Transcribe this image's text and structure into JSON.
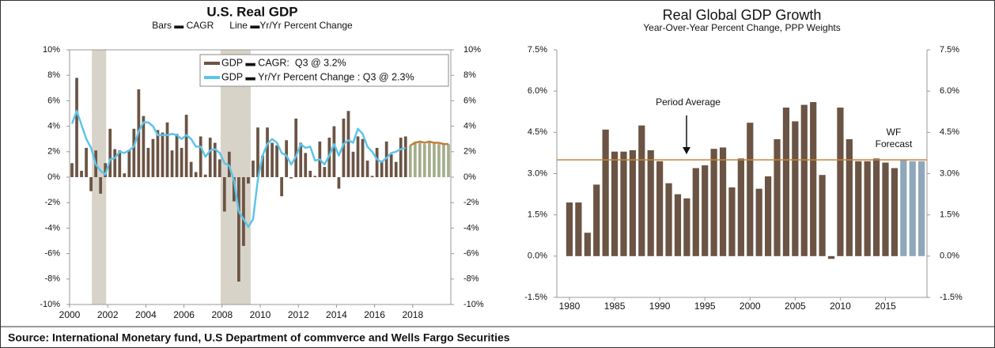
{
  "source": "Source: International Monetary fund, U.S Department of commverce and Wells Fargo Securities",
  "chart_data": [
    {
      "type": "bar",
      "title": "U.S. Real GDP",
      "subtitle": "Bars ▬ CAGR      Line ▬Yr/Yr Percent Change",
      "xlim": [
        2000,
        2020
      ],
      "xticks": [
        2000,
        2002,
        2004,
        2006,
        2008,
        2010,
        2012,
        2014,
        2016,
        2018
      ],
      "ylim": [
        -10,
        10
      ],
      "yticks": [
        {
          "value": -10,
          "label": "-10%"
        },
        {
          "value": -8,
          "label": "-8%"
        },
        {
          "value": -6,
          "label": "-6%"
        },
        {
          "value": -4,
          "label": "-4%"
        },
        {
          "value": -2,
          "label": "-2%"
        },
        {
          "value": 0,
          "label": "0%"
        },
        {
          "value": 2,
          "label": "2%"
        },
        {
          "value": 4,
          "label": "4%"
        },
        {
          "value": 6,
          "label": "6%"
        },
        {
          "value": 8,
          "label": "8%"
        },
        {
          "value": 10,
          "label": "10%"
        }
      ],
      "shaded": [
        [
          2001.17,
          2001.92
        ],
        [
          2007.92,
          2009.5
        ]
      ],
      "shade_color": "#d8d3c8",
      "series": [
        {
          "name": "GDP ▬ CAGR:  Q3 @ 3.2%",
          "type": "bar",
          "color": "#6b5444",
          "x": [
            2000.125,
            2000.375,
            2000.625,
            2000.875,
            2001.125,
            2001.375,
            2001.625,
            2001.875,
            2002.125,
            2002.375,
            2002.625,
            2002.875,
            2003.125,
            2003.375,
            2003.625,
            2003.875,
            2004.125,
            2004.375,
            2004.625,
            2004.875,
            2005.125,
            2005.375,
            2005.625,
            2005.875,
            2006.125,
            2006.375,
            2006.625,
            2006.875,
            2007.125,
            2007.375,
            2007.625,
            2007.875,
            2008.125,
            2008.375,
            2008.625,
            2008.875,
            2009.125,
            2009.375,
            2009.625,
            2009.875,
            2010.125,
            2010.375,
            2010.625,
            2010.875,
            2011.125,
            2011.375,
            2011.625,
            2011.875,
            2012.125,
            2012.375,
            2012.625,
            2012.875,
            2013.125,
            2013.375,
            2013.625,
            2013.875,
            2014.125,
            2014.375,
            2014.625,
            2014.875,
            2015.125,
            2015.375,
            2015.625,
            2015.875,
            2016.125,
            2016.375,
            2016.625,
            2016.875,
            2017.125,
            2017.375,
            2017.625
          ],
          "values": [
            1.1,
            7.8,
            0.5,
            2.3,
            -1.1,
            2.1,
            -1.3,
            1.1,
            3.8,
            2.2,
            2.1,
            0.3,
            2.1,
            3.8,
            6.9,
            4.8,
            2.3,
            3.0,
            3.7,
            3.5,
            4.3,
            2.1,
            3.4,
            2.3,
            4.9,
            1.2,
            0.4,
            3.2,
            0.2,
            3.1,
            2.7,
            1.4,
            -2.7,
            2.0,
            -1.9,
            -8.2,
            -5.4,
            -0.5,
            1.3,
            3.9,
            1.7,
            3.9,
            2.7,
            2.5,
            -1.5,
            2.9,
            -0.1,
            4.6,
            2.7,
            1.9,
            0.5,
            0.1,
            2.8,
            0.8,
            3.1,
            4.0,
            -0.9,
            4.6,
            5.2,
            2.0,
            3.2,
            3.0,
            1.3,
            0.1,
            2.3,
            1.3,
            2.8,
            1.8,
            1.2,
            3.1,
            3.2
          ]
        },
        {
          "type": "bar",
          "color": "#a5ae8c",
          "x": [
            2017.875,
            2018.125,
            2018.375,
            2018.625,
            2018.875,
            2019.125,
            2019.375,
            2019.625,
            2019.875
          ],
          "values": [
            2.5,
            2.8,
            2.7,
            2.6,
            2.8,
            2.7,
            2.6,
            2.6,
            2.6
          ]
        },
        {
          "name": "GDP ▬ Yr/Yr Percent Change : Q3 @ 2.3%",
          "type": "line",
          "color": "#5ec4ea",
          "x": [
            2000.125,
            2000.375,
            2000.625,
            2000.875,
            2001.125,
            2001.375,
            2001.625,
            2001.875,
            2002.125,
            2002.375,
            2002.625,
            2002.875,
            2003.125,
            2003.375,
            2003.625,
            2003.875,
            2004.125,
            2004.375,
            2004.625,
            2004.875,
            2005.125,
            2005.375,
            2005.625,
            2005.875,
            2006.125,
            2006.375,
            2006.625,
            2006.875,
            2007.125,
            2007.375,
            2007.625,
            2007.875,
            2008.125,
            2008.375,
            2008.625,
            2008.875,
            2009.125,
            2009.375,
            2009.625,
            2009.875,
            2010.125,
            2010.375,
            2010.625,
            2010.875,
            2011.125,
            2011.375,
            2011.625,
            2011.875,
            2012.125,
            2012.375,
            2012.625,
            2012.875,
            2013.125,
            2013.375,
            2013.625,
            2013.875,
            2014.125,
            2014.375,
            2014.625,
            2014.875,
            2015.125,
            2015.375,
            2015.625,
            2015.875,
            2016.125,
            2016.375,
            2016.625,
            2016.875,
            2017.125,
            2017.375,
            2017.625
          ],
          "values": [
            4.2,
            5.2,
            4.1,
            3.0,
            2.3,
            1.0,
            0.5,
            0.2,
            1.4,
            1.5,
            2.0,
            1.9,
            2.1,
            2.4,
            3.6,
            4.3,
            4.3,
            4.0,
            3.3,
            3.3,
            3.3,
            3.4,
            3.3,
            3.0,
            3.3,
            3.0,
            2.4,
            2.4,
            1.6,
            2.1,
            2.2,
            1.9,
            1.1,
            0.9,
            -0.3,
            -2.7,
            -3.3,
            -3.9,
            -3.3,
            -0.2,
            1.7,
            2.6,
            3.0,
            2.7,
            1.9,
            1.7,
            1.0,
            1.6,
            2.6,
            2.3,
            2.4,
            1.3,
            1.4,
            1.0,
            1.7,
            2.6,
            1.7,
            2.6,
            2.9,
            2.7,
            3.8,
            3.4,
            2.4,
            2.0,
            1.4,
            1.2,
            1.5,
            1.9,
            2.0,
            2.2,
            2.3
          ]
        },
        {
          "type": "line",
          "color": "#c17f3a",
          "x": [
            2017.875,
            2018.125,
            2018.375,
            2018.625,
            2018.875,
            2019.125,
            2019.375,
            2019.625,
            2019.875
          ],
          "values": [
            2.5,
            2.7,
            2.8,
            2.7,
            2.8,
            2.7,
            2.7,
            2.6,
            2.6
          ]
        }
      ]
    },
    {
      "type": "bar",
      "title": "Real Global GDP Growth",
      "subtitle": "Year-Over-Year Percent Change, PPP Weights",
      "xlim": [
        1978.6,
        2019.6
      ],
      "xticks": [
        1980,
        1985,
        1990,
        1995,
        2000,
        2005,
        2010,
        2015
      ],
      "ylim": [
        -1.5,
        7.5
      ],
      "yticks": [
        {
          "value": -1.5,
          "label": "-1.5%"
        },
        {
          "value": 0,
          "label": "0.0%"
        },
        {
          "value": 1.5,
          "label": "1.5%"
        },
        {
          "value": 3,
          "label": "3.0%"
        },
        {
          "value": 4.5,
          "label": "4.5%"
        },
        {
          "value": 6,
          "label": "6.0%"
        },
        {
          "value": 7.5,
          "label": "7.5%"
        }
      ],
      "hlines": [
        {
          "value": 3.5,
          "color": "#c8843a"
        }
      ],
      "annotations": [
        "Period Average",
        "WF",
        "Forecast"
      ],
      "series": [
        {
          "type": "bar",
          "color": "#6b5444",
          "x": [
            1980,
            1981,
            1982,
            1983,
            1984,
            1985,
            1986,
            1987,
            1988,
            1989,
            1990,
            1991,
            1992,
            1993,
            1994,
            1995,
            1996,
            1997,
            1998,
            1999,
            2000,
            2001,
            2002,
            2003,
            2004,
            2005,
            2006,
            2007,
            2008,
            2009,
            2010,
            2011,
            2012,
            2013,
            2014,
            2015,
            2016
          ],
          "values": [
            1.95,
            1.95,
            0.85,
            2.6,
            4.6,
            3.8,
            3.8,
            3.85,
            4.75,
            3.85,
            3.45,
            2.65,
            2.25,
            2.1,
            3.2,
            3.3,
            3.9,
            3.95,
            2.5,
            3.55,
            4.85,
            2.45,
            2.9,
            4.25,
            5.4,
            4.9,
            5.5,
            5.6,
            2.95,
            -0.1,
            5.4,
            4.25,
            3.45,
            3.45,
            3.55,
            3.4,
            3.2
          ]
        },
        {
          "type": "bar",
          "color": "#8fa7ba",
          "x": [
            2017,
            2018,
            2019
          ],
          "values": [
            3.5,
            3.45,
            3.45
          ]
        }
      ]
    }
  ]
}
